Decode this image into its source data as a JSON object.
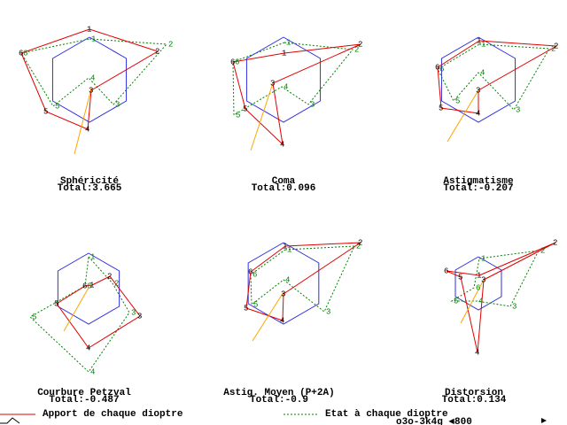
{
  "panels": [
    {
      "title": "Sphéricité",
      "total": "Total:3.665",
      "red_labels": [
        "1",
        "2",
        "3",
        "4",
        "5",
        "6"
      ],
      "green_labels": [
        "1",
        "2",
        "3",
        "4",
        "5",
        "6"
      ]
    },
    {
      "title": "Coma",
      "total": "Total:0.096",
      "red_labels": [
        "1",
        "2",
        "3",
        "4",
        "5",
        "6"
      ],
      "green_labels": [
        "1",
        "2",
        "3",
        "4",
        "5",
        "6"
      ]
    },
    {
      "title": "Astigmatisme",
      "total": "Total:-0.207",
      "red_labels": [
        "1",
        "2",
        "3",
        "4",
        "5",
        "6"
      ],
      "green_labels": [
        "1",
        "2",
        "3",
        "4",
        "5",
        "6"
      ]
    },
    {
      "title": "Courbure Petzval",
      "total": "Total:-0.487",
      "red_labels": [
        "1",
        "2",
        "3",
        "4",
        "5",
        "6"
      ],
      "green_labels": [
        "1",
        "2",
        "3",
        "4",
        "5",
        "6"
      ]
    },
    {
      "title": "Astig. Moyen (P+2A)",
      "total": "Total:-0.9",
      "red_labels": [
        "1",
        "2",
        "3",
        "4",
        "5",
        "6"
      ],
      "green_labels": [
        "1",
        "2",
        "3",
        "4",
        "5",
        "6"
      ]
    },
    {
      "title": "Distorsion",
      "total": "Total:0.134",
      "red_labels": [
        "1",
        "2",
        "3",
        "4",
        "5",
        "6"
      ],
      "green_labels": [
        "1",
        "2",
        "3",
        "4",
        "5",
        "6"
      ]
    }
  ],
  "legend": {
    "red": "Apport de chaque dioptre",
    "green": "Etat à chaque dioptre"
  },
  "status": "o3o-3k4g ◄800"
}
